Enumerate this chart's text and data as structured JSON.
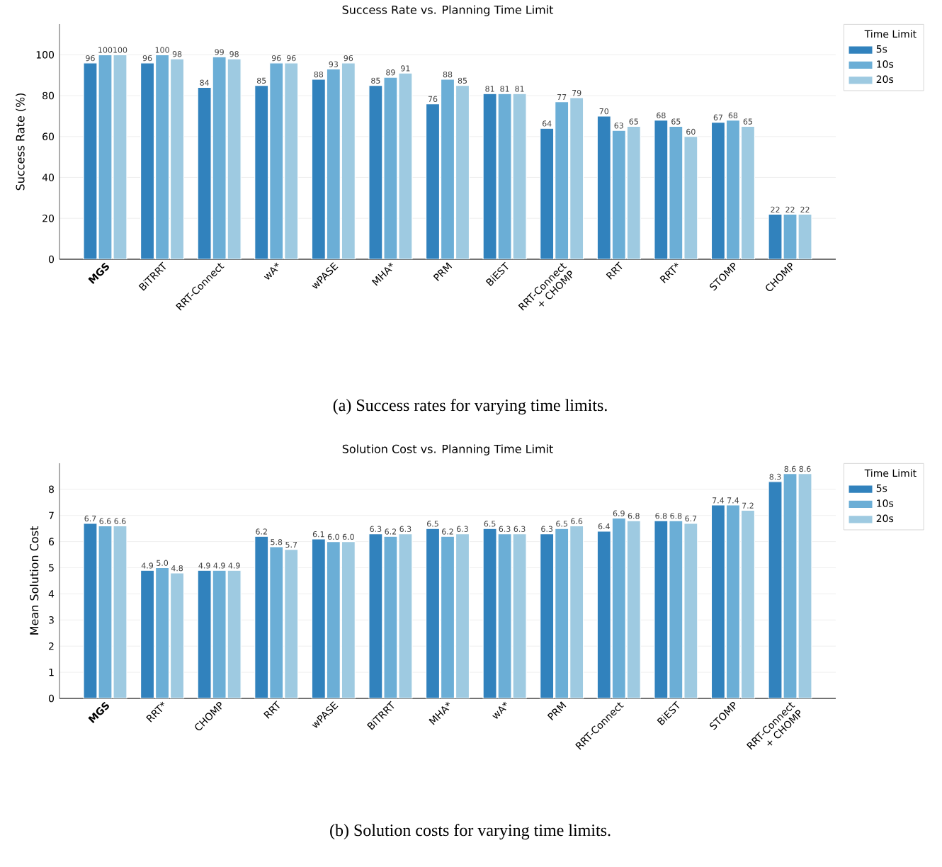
{
  "chart_data": [
    {
      "type": "bar",
      "title": "Success Rate vs. Planning Time Limit",
      "ylabel": "Success Rate (%)",
      "categories": [
        "**MGS**",
        "BiTRRT",
        "RRT-Connect",
        "wA*",
        "wPASE",
        "MHA*",
        "PRM",
        "BiEST",
        "RRT-Connect + CHOMP",
        "RRT",
        "RRT*",
        "STOMP",
        "CHOMP"
      ],
      "series": [
        {
          "name": "5s",
          "color": "#3182bd",
          "values": [
            96,
            96,
            84,
            85,
            88,
            85,
            76,
            81,
            64,
            70,
            68,
            67,
            22
          ]
        },
        {
          "name": "10s",
          "color": "#6baed6",
          "values": [
            100,
            100,
            99,
            96,
            93,
            89,
            88,
            81,
            77,
            63,
            65,
            68,
            22
          ]
        },
        {
          "name": "20s",
          "color": "#9ecae1",
          "values": [
            100,
            98,
            98,
            96,
            96,
            91,
            85,
            81,
            79,
            65,
            60,
            65,
            22
          ]
        }
      ],
      "ylim": [
        0,
        115
      ],
      "yticks": [
        0,
        20,
        40,
        60,
        80,
        100
      ],
      "grid": "y",
      "legend": "top right",
      "legend_title": "Time Limit",
      "data_labels": true,
      "annotations": [
        "(a) Success rates for varying time limits."
      ]
    },
    {
      "type": "bar",
      "title": "Solution Cost vs. Planning Time Limit",
      "ylabel": "Mean Solution Cost",
      "categories": [
        "**MGS**",
        "RRT*",
        "CHOMP",
        "RRT",
        "wPASE",
        "BiTRRT",
        "MHA*",
        "wA*",
        "PRM",
        "RRT-Connect",
        "BiEST",
        "STOMP",
        "RRT-Connect + CHOMP"
      ],
      "series": [
        {
          "name": "5s",
          "color": "#3182bd",
          "values": [
            6.7,
            4.9,
            4.9,
            6.2,
            6.1,
            6.3,
            6.5,
            6.5,
            6.3,
            6.4,
            6.8,
            7.4,
            8.3
          ],
          "value_labels": [
            "6.7",
            "4.9",
            "4.9",
            "6.2",
            "6.1",
            "6.3",
            "6.5",
            "6.5",
            "6.3",
            "6.4",
            "6.8",
            "7.4",
            "8.3"
          ]
        },
        {
          "name": "10s",
          "color": "#6baed6",
          "values": [
            6.6,
            5.0,
            4.9,
            5.8,
            6.0,
            6.2,
            6.2,
            6.3,
            6.5,
            6.9,
            6.8,
            7.4,
            8.6
          ],
          "value_labels": [
            "6.6",
            "5.0",
            "4.9",
            "5.8",
            "6.0",
            "6.2",
            "6.2",
            "6.3",
            "6.5",
            "6.9",
            "6.8",
            "7.4",
            "8.6"
          ]
        },
        {
          "name": "20s",
          "color": "#9ecae1",
          "values": [
            6.6,
            4.8,
            4.9,
            5.7,
            6.0,
            6.3,
            6.3,
            6.3,
            6.6,
            6.8,
            6.7,
            7.2,
            8.6
          ],
          "value_labels": [
            "6.6",
            "4.8",
            "4.9",
            "5.7",
            "6.0",
            "6.3",
            "6.3",
            "6.3",
            "6.6",
            "6.8",
            "6.7",
            "7.2",
            "8.6"
          ]
        }
      ],
      "ylim": [
        0,
        9
      ],
      "yticks": [
        0,
        1,
        2,
        3,
        4,
        5,
        6,
        7,
        8
      ],
      "grid": "y",
      "legend": "top right",
      "legend_title": "Time Limit",
      "annotations": [
        "(b) Solution costs for varying time limits."
      ]
    }
  ]
}
